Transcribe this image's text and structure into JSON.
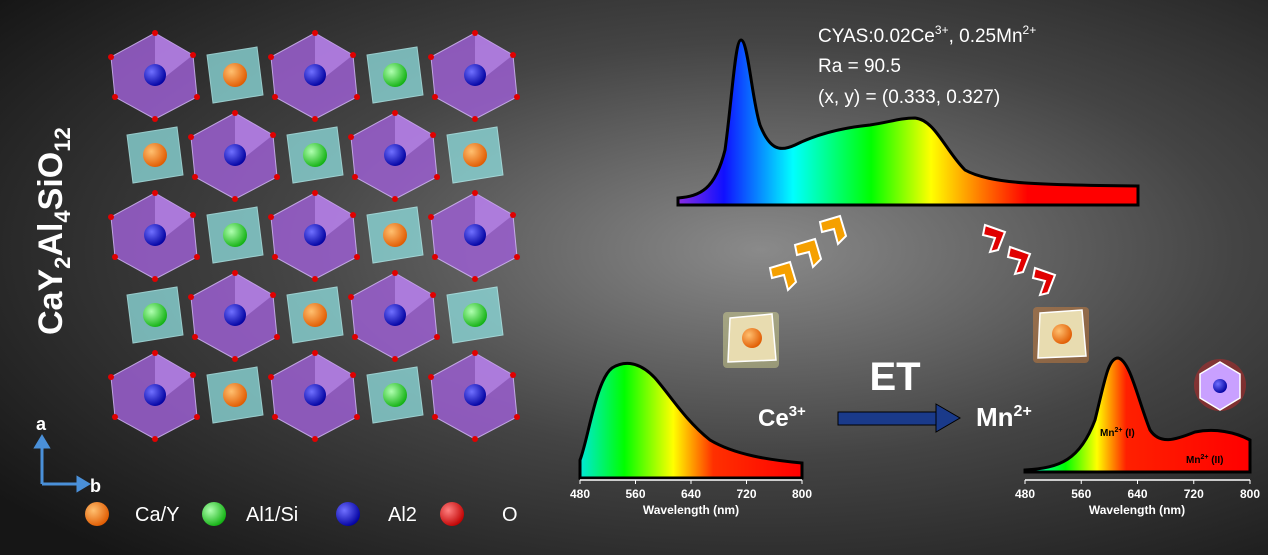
{
  "structure": {
    "formula": [
      "CaY",
      "2",
      "Al",
      "4",
      "SiO",
      "12"
    ],
    "axes": [
      "a",
      "b"
    ],
    "legend": [
      "Ca/Y",
      "Al1/Si",
      "Al2",
      "O"
    ]
  },
  "spectrum": {
    "sample": [
      "CYAS:0.02Ce",
      "3+",
      ", 0.25Mn",
      "2+"
    ],
    "ra": "Ra = 90.5",
    "cie": "(x, y) = (0.333, 0.327)"
  },
  "transfer": {
    "label": "ET",
    "donor": [
      "Ce",
      "3+"
    ],
    "acceptor": [
      "Mn",
      "2+"
    ]
  },
  "ce_spectrum": {
    "xticks": [
      480,
      560,
      640,
      720,
      800
    ],
    "xlabel": "Wavelength (nm)"
  },
  "mn_spectrum": {
    "xticks": [
      480,
      560,
      640,
      720,
      800
    ],
    "xlabel": "Wavelength (nm)",
    "peaks": [
      [
        "Mn",
        "2+",
        " (I)"
      ],
      [
        "Mn",
        "2+",
        " (II)"
      ]
    ]
  }
}
